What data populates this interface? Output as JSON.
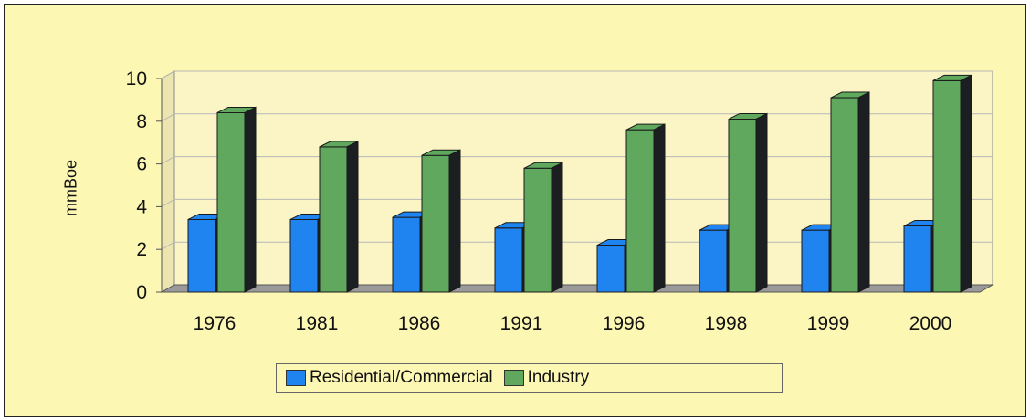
{
  "chart_data": {
    "type": "bar",
    "title": "",
    "xlabel": "",
    "ylabel": "mmBoe",
    "ylim": [
      0,
      10
    ],
    "yticks": [
      0,
      2,
      4,
      6,
      8,
      10
    ],
    "grid": true,
    "legend_position": "bottom",
    "categories": [
      "1976",
      "1981",
      "1986",
      "1991",
      "1996",
      "1998",
      "1999",
      "2000"
    ],
    "series": [
      {
        "name": "Residential/Commercial",
        "color": "#1f83f0",
        "values": [
          3.4,
          3.4,
          3.5,
          3.0,
          2.2,
          2.9,
          2.9,
          3.1
        ]
      },
      {
        "name": "Industry",
        "color": "#5fa85e",
        "values": [
          8.4,
          6.8,
          6.4,
          5.8,
          7.6,
          8.1,
          9.1,
          9.9
        ]
      }
    ]
  }
}
